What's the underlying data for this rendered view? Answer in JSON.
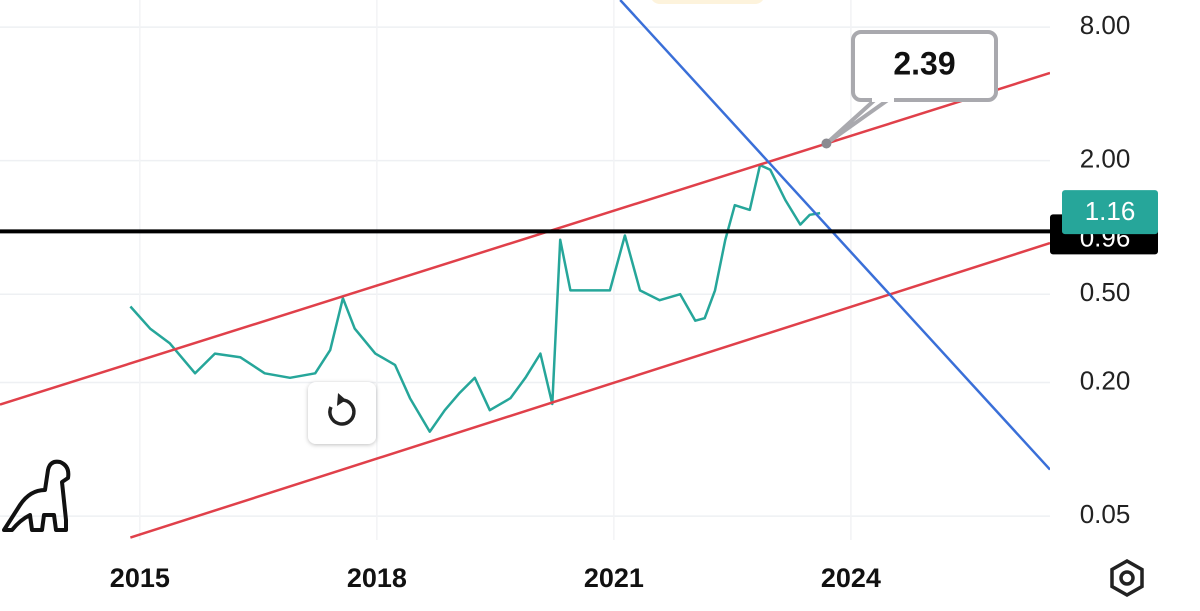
{
  "chart_data": {
    "type": "line",
    "log_y": true,
    "grid": true,
    "xlim": [
      2013.23,
      2026.52
    ],
    "ylim": [
      0.039,
      10.6
    ],
    "xticks": [
      2015,
      2018,
      2021,
      2024
    ],
    "yticks": [
      {
        "value": 8,
        "label": "8.00"
      },
      {
        "value": 2,
        "label": "2.00"
      },
      {
        "value": 0.5,
        "label": "0.50"
      },
      {
        "value": 0.2,
        "label": "0.20"
      },
      {
        "value": 0.05,
        "label": "0.05"
      }
    ],
    "color": "#26a69a",
    "x": [
      2014.88,
      2015.13,
      2015.38,
      2015.7,
      2015.95,
      2016.27,
      2016.58,
      2016.9,
      2017.22,
      2017.41,
      2017.57,
      2017.72,
      2017.98,
      2018.23,
      2018.42,
      2018.67,
      2018.86,
      2019.05,
      2019.24,
      2019.43,
      2019.69,
      2019.88,
      2020.07,
      2020.22,
      2020.32,
      2020.45,
      2020.7,
      2020.95,
      2021.14,
      2021.33,
      2021.58,
      2021.84,
      2022.03,
      2022.15,
      2022.28,
      2022.41,
      2022.53,
      2022.72,
      2022.85,
      2022.98,
      2023.17,
      2023.36,
      2023.48,
      2023.61
    ],
    "values": [
      0.44,
      0.35,
      0.3,
      0.22,
      0.27,
      0.26,
      0.22,
      0.21,
      0.22,
      0.28,
      0.48,
      0.35,
      0.27,
      0.24,
      0.17,
      0.12,
      0.15,
      0.18,
      0.21,
      0.15,
      0.17,
      0.21,
      0.27,
      0.16,
      0.88,
      0.52,
      0.52,
      0.52,
      0.92,
      0.52,
      0.47,
      0.5,
      0.38,
      0.39,
      0.52,
      0.88,
      1.26,
      1.2,
      1.91,
      1.82,
      1.33,
      1.03,
      1.14,
      1.16
    ],
    "trend_lines": [
      {
        "color": "#e0404a",
        "x": [
          2013.23,
          2026.52
        ],
        "values": [
          0.159,
          4.97
        ]
      },
      {
        "color": "#e0404a",
        "x": [
          2014.88,
          2026.52
        ],
        "values": [
          0.04,
          0.85
        ]
      },
      {
        "color": "#3a6fd8",
        "x": [
          2021.08,
          2026.52
        ],
        "values": [
          10.6,
          0.081
        ]
      }
    ],
    "horizontal_line": {
      "value": 0.96,
      "color": "#000000"
    },
    "last_price": {
      "value": 1.16,
      "color": "#26a69a"
    },
    "callout": {
      "x": 2023.69,
      "value": 2.39
    }
  }
}
